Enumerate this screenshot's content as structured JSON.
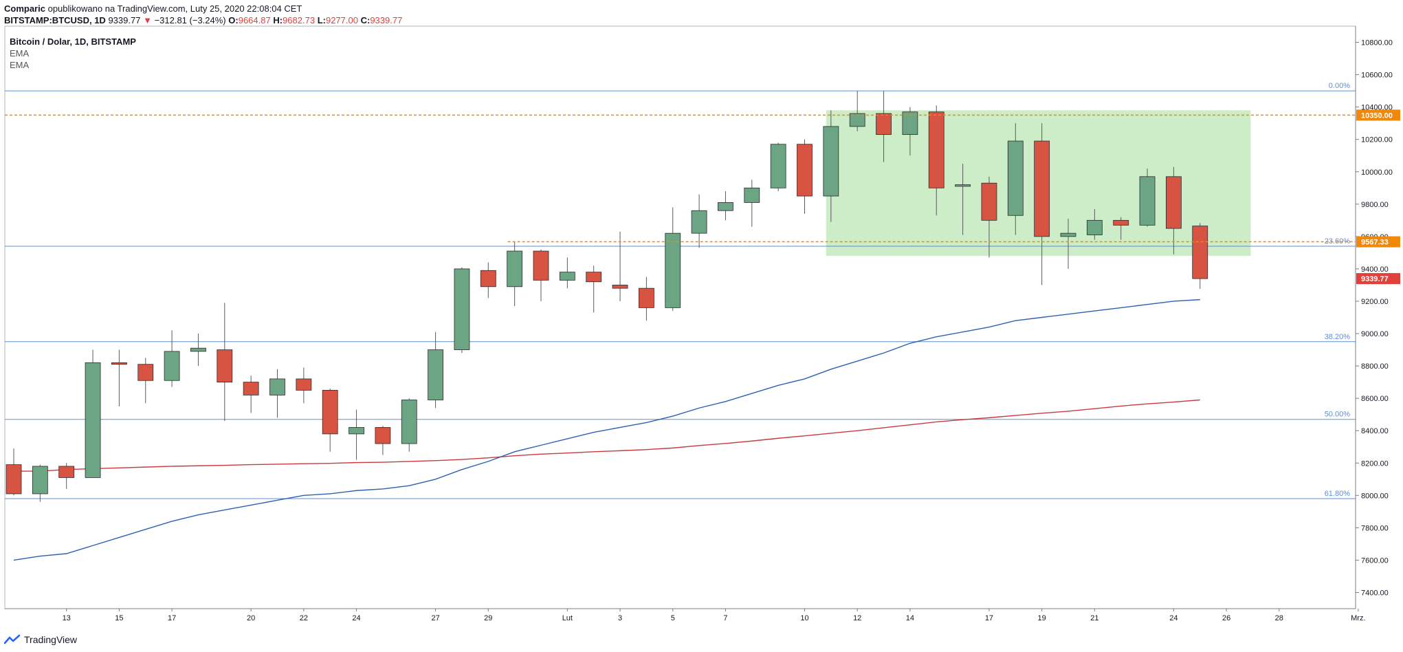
{
  "header": {
    "author": "Comparic",
    "published": "opublikowano na TradingView.com, Luty 25, 2020 22:08:04 CET",
    "symbol": "BITSTAMP:BTCUSD, 1D",
    "last": "9339.77",
    "arrow": "▼",
    "change": "−312.81 (−3.24%)",
    "o_label": "O:",
    "o_value": "9664.87",
    "h_label": "H:",
    "h_value": "9682.73",
    "l_label": "L:",
    "l_value": "9277.00",
    "c_label": "C:",
    "c_value": "9339.77"
  },
  "legend": {
    "title": "Bitcoin / Dolar, 1D, BITSTAMP",
    "ind1": "EMA",
    "ind2": "EMA"
  },
  "footer": {
    "brand": "TradingView"
  },
  "colors": {
    "up": "#6ba583",
    "down": "#d75442",
    "wick": "#5a5a5a",
    "fib": "#5b8dd6",
    "ema_fast": "#2e5fb3",
    "ema_slow": "#c9393e",
    "level": "#f0890a",
    "zone": "#c9ecc4",
    "price_red": "#e0423b"
  },
  "chart_data": {
    "type": "candlestick",
    "title": "Bitcoin / Dolar, 1D, BITSTAMP",
    "ylim": [
      7300,
      10900
    ],
    "y_ticks": [
      7400,
      7600,
      7800,
      8000,
      8200,
      8400,
      8600,
      8800,
      9000,
      9200,
      9400,
      9600,
      9800,
      10000,
      10200,
      10400,
      10600,
      10800
    ],
    "y_tick_labels": [
      "7400.00",
      "7600.00",
      "7800.00",
      "8000.00",
      "8200.00",
      "8400.00",
      "8600.00",
      "8800.00",
      "9000.00",
      "9200.00",
      "9400.00",
      "9600.00",
      "9800.00",
      "10000.00",
      "10200.00",
      "10400.00",
      "10600.00",
      "10800.00"
    ],
    "x_ticks": [
      {
        "i": 2,
        "label": "13"
      },
      {
        "i": 4,
        "label": "15"
      },
      {
        "i": 6,
        "label": "17"
      },
      {
        "i": 9,
        "label": "20"
      },
      {
        "i": 11,
        "label": "22"
      },
      {
        "i": 13,
        "label": "24"
      },
      {
        "i": 16,
        "label": "27"
      },
      {
        "i": 18,
        "label": "29"
      },
      {
        "i": 21,
        "label": "Lut"
      },
      {
        "i": 23,
        "label": "3"
      },
      {
        "i": 25,
        "label": "5"
      },
      {
        "i": 27,
        "label": "7"
      },
      {
        "i": 30,
        "label": "10"
      },
      {
        "i": 32,
        "label": "12"
      },
      {
        "i": 34,
        "label": "14"
      },
      {
        "i": 37,
        "label": "17"
      },
      {
        "i": 39,
        "label": "19"
      },
      {
        "i": 41,
        "label": "21"
      },
      {
        "i": 44,
        "label": "24"
      },
      {
        "i": 46,
        "label": "26"
      },
      {
        "i": 48,
        "label": "28"
      },
      {
        "i": 51,
        "label": "Mrz."
      }
    ],
    "candles": [
      {
        "o": 8190,
        "h": 8290,
        "l": 8000,
        "c": 8010
      },
      {
        "o": 8010,
        "h": 8190,
        "l": 7960,
        "c": 8180
      },
      {
        "o": 8180,
        "h": 8200,
        "l": 8040,
        "c": 8110
      },
      {
        "o": 8110,
        "h": 8900,
        "l": 8110,
        "c": 8820
      },
      {
        "o": 8820,
        "h": 8900,
        "l": 8550,
        "c": 8810
      },
      {
        "o": 8810,
        "h": 8850,
        "l": 8570,
        "c": 8710
      },
      {
        "o": 8710,
        "h": 9020,
        "l": 8670,
        "c": 8890
      },
      {
        "o": 8890,
        "h": 9000,
        "l": 8800,
        "c": 8910
      },
      {
        "o": 8900,
        "h": 9190,
        "l": 8460,
        "c": 8700
      },
      {
        "o": 8700,
        "h": 8740,
        "l": 8510,
        "c": 8620
      },
      {
        "o": 8620,
        "h": 8780,
        "l": 8480,
        "c": 8720
      },
      {
        "o": 8720,
        "h": 8790,
        "l": 8570,
        "c": 8650
      },
      {
        "o": 8650,
        "h": 8660,
        "l": 8270,
        "c": 8380
      },
      {
        "o": 8380,
        "h": 8530,
        "l": 8220,
        "c": 8420
      },
      {
        "o": 8420,
        "h": 8430,
        "l": 8250,
        "c": 8320
      },
      {
        "o": 8320,
        "h": 8600,
        "l": 8270,
        "c": 8590
      },
      {
        "o": 8590,
        "h": 9010,
        "l": 8540,
        "c": 8900
      },
      {
        "o": 8900,
        "h": 9410,
        "l": 8880,
        "c": 9400
      },
      {
        "o": 9390,
        "h": 9440,
        "l": 9220,
        "c": 9290
      },
      {
        "o": 9290,
        "h": 9570,
        "l": 9170,
        "c": 9510
      },
      {
        "o": 9510,
        "h": 9520,
        "l": 9200,
        "c": 9330
      },
      {
        "o": 9330,
        "h": 9470,
        "l": 9280,
        "c": 9380
      },
      {
        "o": 9380,
        "h": 9420,
        "l": 9130,
        "c": 9320
      },
      {
        "o": 9300,
        "h": 9630,
        "l": 9200,
        "c": 9280
      },
      {
        "o": 9280,
        "h": 9350,
        "l": 9080,
        "c": 9160
      },
      {
        "o": 9160,
        "h": 9780,
        "l": 9140,
        "c": 9620
      },
      {
        "o": 9620,
        "h": 9860,
        "l": 9530,
        "c": 9760
      },
      {
        "o": 9760,
        "h": 9880,
        "l": 9700,
        "c": 9810
      },
      {
        "o": 9810,
        "h": 9950,
        "l": 9660,
        "c": 9900
      },
      {
        "o": 9900,
        "h": 10180,
        "l": 9880,
        "c": 10170
      },
      {
        "o": 10170,
        "h": 10200,
        "l": 9740,
        "c": 9850
      },
      {
        "o": 9850,
        "h": 10380,
        "l": 9690,
        "c": 10280
      },
      {
        "o": 10280,
        "h": 10500,
        "l": 10250,
        "c": 10360
      },
      {
        "o": 10360,
        "h": 10500,
        "l": 10060,
        "c": 10230
      },
      {
        "o": 10230,
        "h": 10400,
        "l": 10100,
        "c": 10370
      },
      {
        "o": 10370,
        "h": 10410,
        "l": 9730,
        "c": 9900
      },
      {
        "o": 9910,
        "h": 10050,
        "l": 9610,
        "c": 9920
      },
      {
        "o": 9930,
        "h": 9970,
        "l": 9470,
        "c": 9700
      },
      {
        "o": 9730,
        "h": 10300,
        "l": 9610,
        "c": 10190
      },
      {
        "o": 10190,
        "h": 10300,
        "l": 9300,
        "c": 9600
      },
      {
        "o": 9600,
        "h": 9710,
        "l": 9400,
        "c": 9620
      },
      {
        "o": 9610,
        "h": 9770,
        "l": 9580,
        "c": 9700
      },
      {
        "o": 9700,
        "h": 9720,
        "l": 9580,
        "c": 9670
      },
      {
        "o": 9670,
        "h": 10020,
        "l": 9660,
        "c": 9970
      },
      {
        "o": 9970,
        "h": 10030,
        "l": 9490,
        "c": 9650
      },
      {
        "o": 9664.87,
        "h": 9682.73,
        "l": 9277.0,
        "c": 9339.77
      }
    ],
    "ema_fast": [
      7600,
      7625,
      7640,
      7690,
      7740,
      7790,
      7840,
      7880,
      7910,
      7940,
      7970,
      8000,
      8010,
      8030,
      8040,
      8060,
      8100,
      8160,
      8210,
      8270,
      8310,
      8350,
      8390,
      8420,
      8450,
      8490,
      8540,
      8580,
      8630,
      8680,
      8720,
      8780,
      8830,
      8880,
      8940,
      8980,
      9010,
      9040,
      9080,
      9100,
      9120,
      9140,
      9160,
      9180,
      9200,
      9210
    ],
    "ema_slow": [
      8150,
      8150,
      8160,
      8165,
      8170,
      8175,
      8180,
      8183,
      8186,
      8190,
      8193,
      8196,
      8198,
      8203,
      8205,
      8210,
      8215,
      8222,
      8232,
      8245,
      8255,
      8262,
      8270,
      8276,
      8283,
      8293,
      8308,
      8321,
      8336,
      8353,
      8368,
      8384,
      8400,
      8418,
      8436,
      8454,
      8468,
      8480,
      8494,
      8508,
      8520,
      8536,
      8552,
      8566,
      8577,
      8590
    ],
    "fib_levels": [
      {
        "value": 10500,
        "label": "0.00%"
      },
      {
        "value": 9540,
        "label": "23.60%"
      },
      {
        "value": 8950,
        "label": "38.20%"
      },
      {
        "value": 8470,
        "label": "50.00%"
      },
      {
        "value": 7980,
        "label": "61.80%"
      }
    ],
    "horizontal_levels": [
      {
        "value": 10350,
        "label": "10350.00"
      },
      {
        "value": 9567.33,
        "label": "9567.33"
      }
    ],
    "zone": {
      "from_index": 31,
      "to_index": 47,
      "top": 10380,
      "bottom": 9480
    },
    "last_price": {
      "value": 9339.77,
      "label": "9339.77"
    }
  }
}
